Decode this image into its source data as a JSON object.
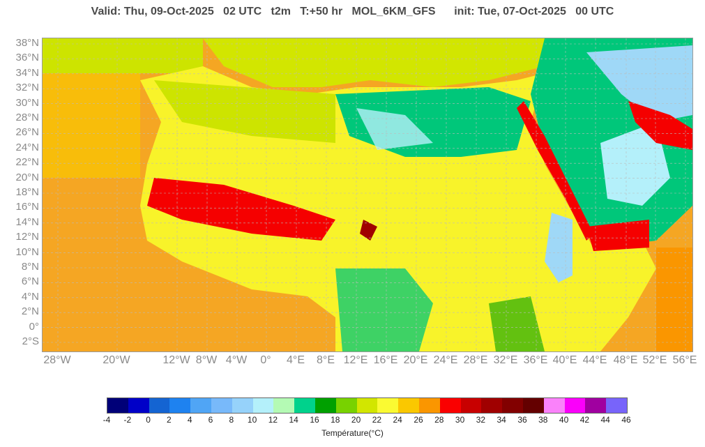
{
  "header": {
    "title": "Valid: Thu, 09-Oct-2025   02 UTC   t2m   T:+50 hr   MOL_6KM_GFS      init: Tue, 07-Oct-2025   00 UTC"
  },
  "map": {
    "lat_labels": [
      "38°N",
      "36°N",
      "34°N",
      "32°N",
      "30°N",
      "28°N",
      "26°N",
      "24°N",
      "22°N",
      "20°N",
      "18°N",
      "16°N",
      "14°N",
      "12°N",
      "10°N",
      "8°N",
      "6°N",
      "4°N",
      "2°N",
      "0°",
      "2°S"
    ],
    "lon_labels": [
      "28°W",
      "20°W",
      "12°W",
      "8°W",
      "4°W",
      "0°",
      "4°E",
      "8°E",
      "12°E",
      "16°E",
      "20°E",
      "24°E",
      "28°E",
      "32°E",
      "36°E",
      "40°E",
      "44°E",
      "48°E",
      "52°E",
      "56°E"
    ],
    "grid": true,
    "colors": {
      "ocean_warm": "#f5a623",
      "land_yellow": "#f8f32a",
      "land_green": "#cde400",
      "hot_red": "#f50000",
      "cool_green": "#00c77a",
      "cool_blue": "#9fd8f7"
    }
  },
  "colorbar": {
    "title": "Température(°C)",
    "ticks": [
      "-4",
      "-2",
      "0",
      "2",
      "4",
      "6",
      "8",
      "10",
      "12",
      "14",
      "16",
      "18",
      "20",
      "22",
      "24",
      "26",
      "28",
      "30",
      "32",
      "34",
      "36",
      "38",
      "40",
      "42",
      "44",
      "46"
    ],
    "colors": [
      "#000078",
      "#0000c8",
      "#1464d2",
      "#1e82f0",
      "#50a5f5",
      "#78b9fa",
      "#96d2fa",
      "#b4f0fa",
      "#b4fab4",
      "#00d28c",
      "#00a000",
      "#78d200",
      "#d2e600",
      "#fafa32",
      "#fac800",
      "#fa9600",
      "#fa0000",
      "#c80000",
      "#a00000",
      "#820000",
      "#640000",
      "#fa82fa",
      "#fa00fa",
      "#a000a0",
      "#7864fa"
    ]
  }
}
